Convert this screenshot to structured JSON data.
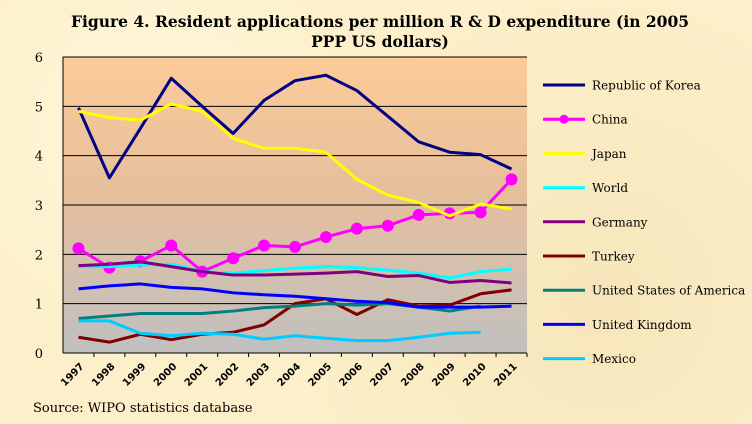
{
  "chart_data": {
    "type": "line",
    "title": "Figure 4. Resident applications per million R & D expenditure (in 2005 PPP US dollars)",
    "title_lines": [
      "Figure 4. Resident applications per million R & D expenditure (in 2005",
      "PPP US dollars)"
    ],
    "source": "Source: WIPO statistics database",
    "xlabel": "",
    "ylabel": "",
    "ylim": [
      0,
      6
    ],
    "yticks": [
      "0",
      "1",
      "2",
      "3",
      "4",
      "5",
      "6"
    ],
    "grid": true,
    "legend_position": "right",
    "categories": [
      "1997",
      "1998",
      "1999",
      "2000",
      "2001",
      "2002",
      "2003",
      "2004",
      "2005",
      "2006",
      "2007",
      "2008",
      "2009",
      "2010",
      "2011"
    ],
    "series": [
      {
        "name": "Republic of Korea",
        "color": "#000080",
        "markers": false,
        "values": [
          4.97,
          3.55,
          4.55,
          5.57,
          5.0,
          4.45,
          5.12,
          5.52,
          5.63,
          5.32,
          4.8,
          4.28,
          4.07,
          4.02,
          3.73
        ]
      },
      {
        "name": "China",
        "color": "#ff00ff",
        "markers": true,
        "values": [
          2.12,
          1.73,
          1.86,
          2.18,
          1.65,
          1.92,
          2.18,
          2.15,
          2.35,
          2.52,
          2.58,
          2.8,
          2.83,
          2.85,
          3.52
        ]
      },
      {
        "name": "Japan",
        "color": "#ffff00",
        "markers": false,
        "values": [
          4.9,
          4.77,
          4.72,
          5.05,
          4.9,
          4.35,
          4.15,
          4.15,
          4.07,
          3.52,
          3.2,
          3.05,
          2.78,
          3.02,
          2.92
        ]
      },
      {
        "name": "World",
        "color": "#00ffff",
        "markers": false,
        "values": [
          1.75,
          1.75,
          1.78,
          1.8,
          1.65,
          1.62,
          1.67,
          1.72,
          1.75,
          1.73,
          1.68,
          1.62,
          1.52,
          1.65,
          1.7
        ]
      },
      {
        "name": "Germany",
        "color": "#800080",
        "markers": false,
        "values": [
          1.77,
          1.8,
          1.85,
          1.75,
          1.65,
          1.58,
          1.58,
          1.6,
          1.62,
          1.65,
          1.55,
          1.57,
          1.43,
          1.47,
          1.42
        ]
      },
      {
        "name": "Turkey",
        "color": "#800000",
        "markers": false,
        "values": [
          0.32,
          0.22,
          0.38,
          0.27,
          0.38,
          0.42,
          0.57,
          1.0,
          1.1,
          0.78,
          1.08,
          0.95,
          0.97,
          1.2,
          1.28
        ]
      },
      {
        "name": "United States of America",
        "color": "#008080",
        "markers": false,
        "values": [
          0.7,
          0.75,
          0.8,
          0.8,
          0.8,
          0.85,
          0.92,
          0.95,
          1.0,
          0.97,
          1.0,
          0.93,
          0.85,
          0.95,
          null
        ]
      },
      {
        "name": "United Kingdom",
        "color": "#0000ff",
        "markers": false,
        "values": [
          1.3,
          1.36,
          1.4,
          1.33,
          1.3,
          1.22,
          1.18,
          1.15,
          1.1,
          1.05,
          1.02,
          0.93,
          0.93,
          0.93,
          0.95
        ]
      },
      {
        "name": "Mexico",
        "color": "#00ccff",
        "markers": false,
        "values": [
          0.65,
          0.65,
          0.4,
          0.35,
          0.4,
          0.38,
          0.28,
          0.35,
          0.3,
          0.25,
          0.25,
          0.32,
          0.4,
          0.42,
          null
        ]
      }
    ]
  }
}
